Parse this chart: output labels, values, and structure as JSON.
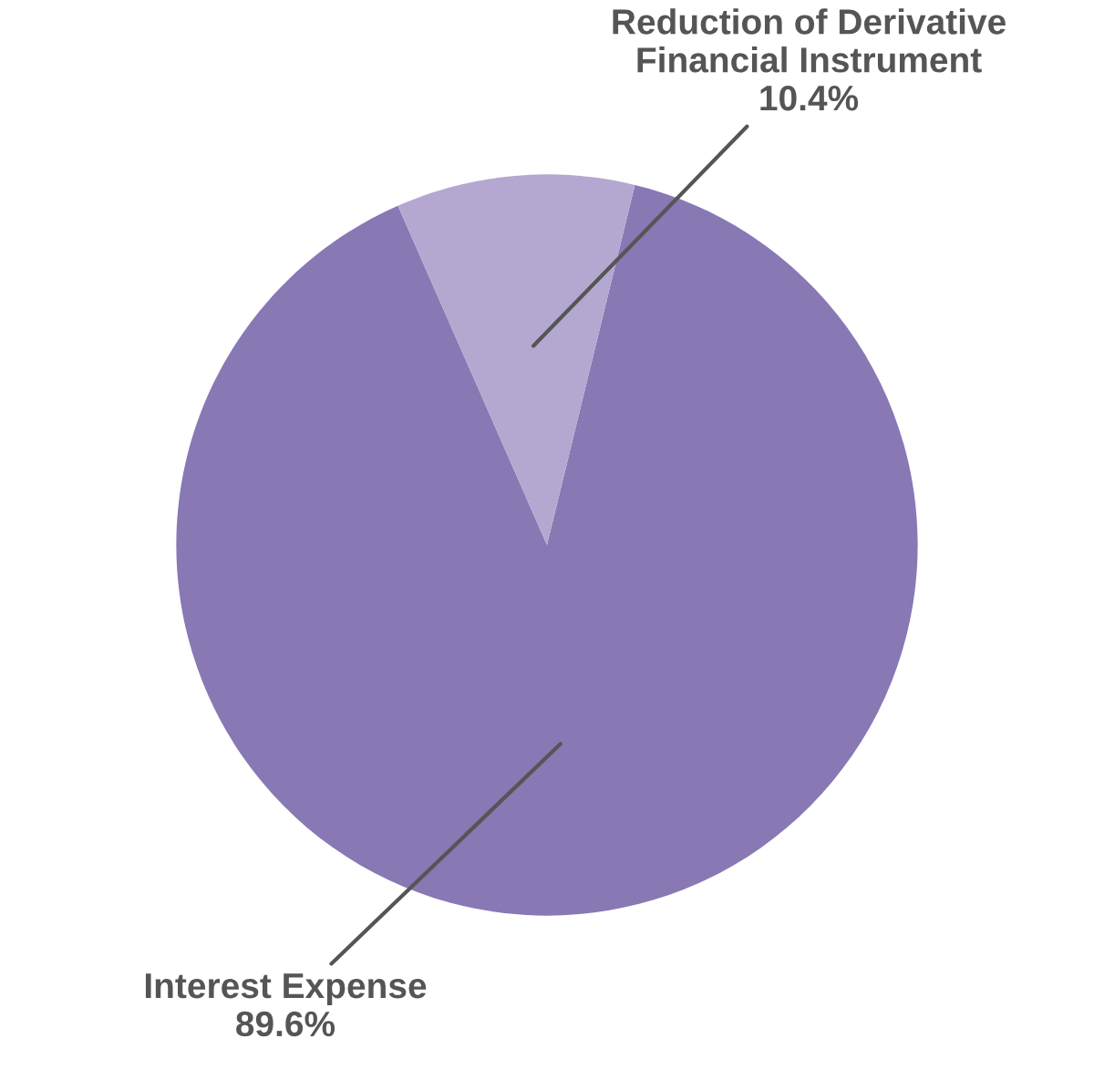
{
  "chart_data": {
    "type": "pie",
    "categories": [
      "Interest Expense",
      "Reduction of Derivative\nFinancial Instrument"
    ],
    "values": [
      89.6,
      10.4
    ],
    "value_labels": [
      "89.6%",
      "10.4%"
    ],
    "colors": [
      "#8878b4",
      "#b4a8d0"
    ],
    "legend": false
  }
}
